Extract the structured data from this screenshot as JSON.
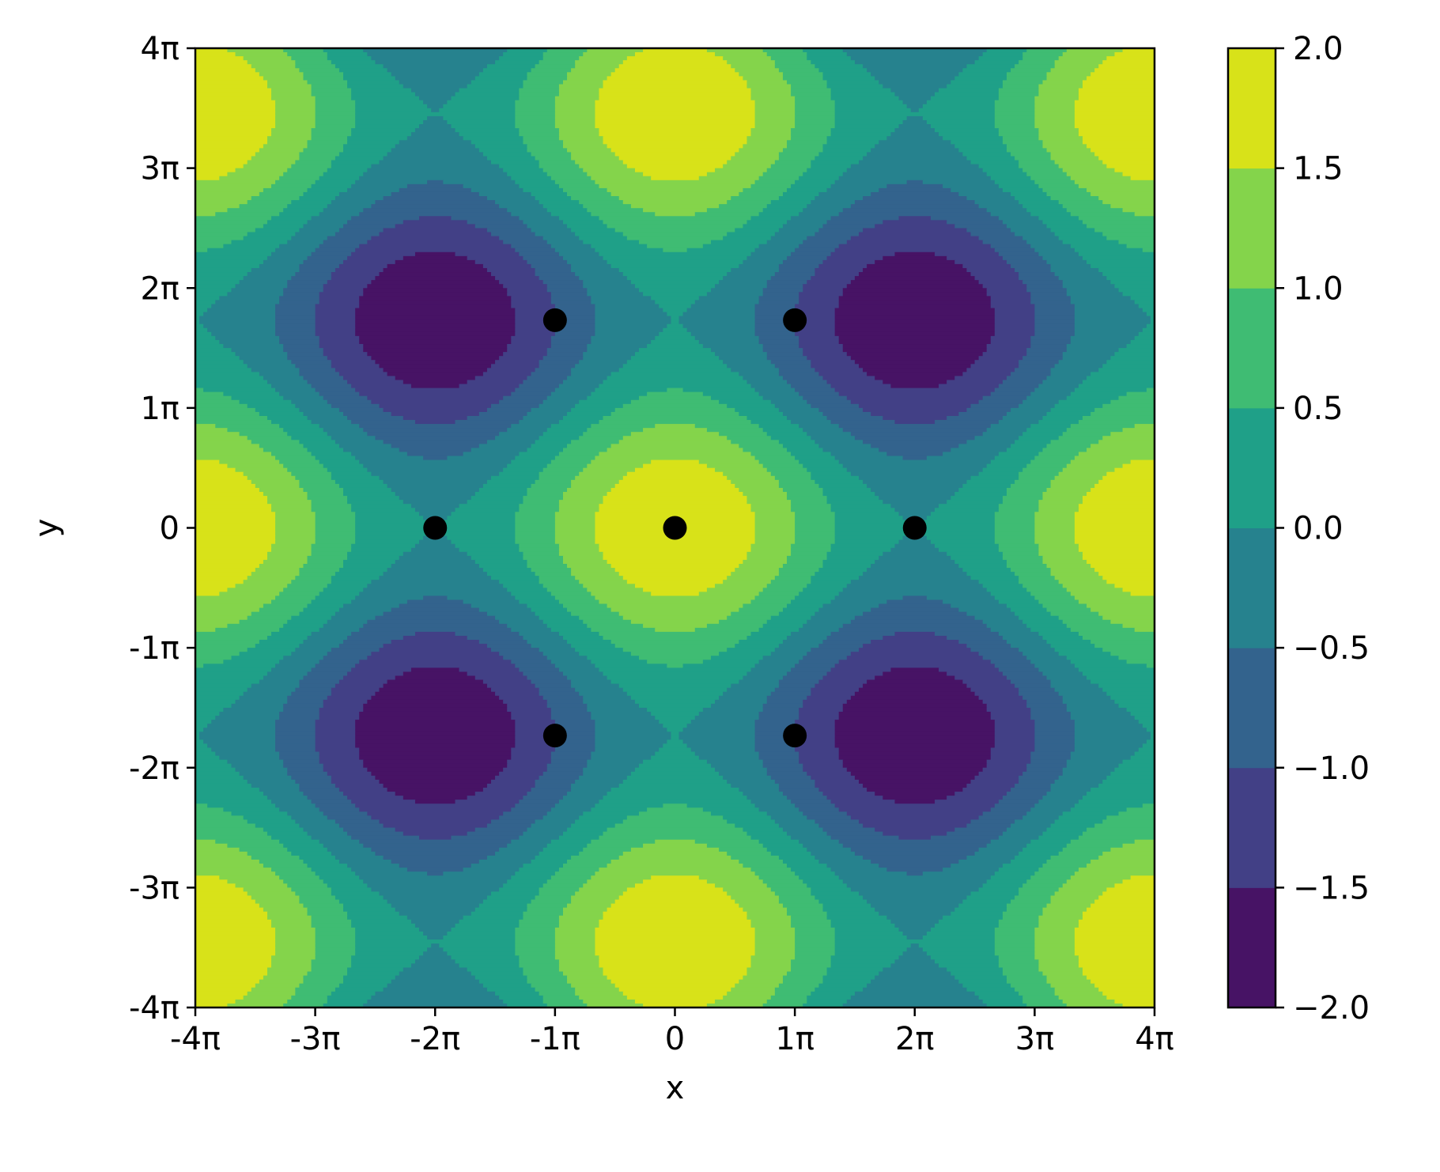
{
  "chart_data": {
    "type": "heatmap",
    "subtype": "filled-contour",
    "function": "z = sin(x/2 + π/2) + sin(y/√3 + π/2)",
    "colormap": "viridis",
    "xlabel": "x",
    "ylabel": "y",
    "xlim": [
      -12.566,
      12.566
    ],
    "ylim": [
      -12.566,
      12.566
    ],
    "xticks": [
      -12.566,
      -9.425,
      -6.283,
      -3.142,
      0,
      3.142,
      6.283,
      9.425,
      12.566
    ],
    "yticks": [
      -12.566,
      -9.425,
      -6.283,
      -3.142,
      0,
      3.142,
      6.283,
      9.425,
      12.566
    ],
    "xtick_labels": [
      "-4π",
      "-3π",
      "-2π",
      "-1π",
      "0",
      "1π",
      "2π",
      "3π",
      "4π"
    ],
    "ytick_labels": [
      "-4π",
      "-3π",
      "-2π",
      "-1π",
      "0",
      "1π",
      "2π",
      "3π",
      "4π"
    ],
    "contour_levels": [
      -2.0,
      -1.5,
      -1.0,
      -0.5,
      0.0,
      0.5,
      1.0,
      1.5,
      2.0
    ],
    "level_colors": [
      "#471365",
      "#424086",
      "#33638d",
      "#26828e",
      "#1fa088",
      "#3fbc73",
      "#84d44b",
      "#d8e219"
    ],
    "colorbar": {
      "ticks": [
        2.0,
        1.5,
        1.0,
        0.5,
        0.0,
        -0.5,
        -1.0,
        -1.5,
        -2.0
      ],
      "tick_labels": [
        "2.0",
        "1.5",
        "1.0",
        "0.5",
        "0.0",
        "−0.5",
        "−1.0",
        "−1.5",
        "−2.0"
      ]
    },
    "markers": {
      "color": "#000000",
      "points": [
        {
          "x": -6.283,
          "y": 0
        },
        {
          "x": 0,
          "y": 0
        },
        {
          "x": 6.283,
          "y": 0
        },
        {
          "x": -3.142,
          "y": 5.441
        },
        {
          "x": 3.142,
          "y": 5.441
        },
        {
          "x": -3.142,
          "y": -5.441
        },
        {
          "x": 3.142,
          "y": -5.441
        }
      ]
    },
    "grid": false,
    "legend": "none"
  }
}
